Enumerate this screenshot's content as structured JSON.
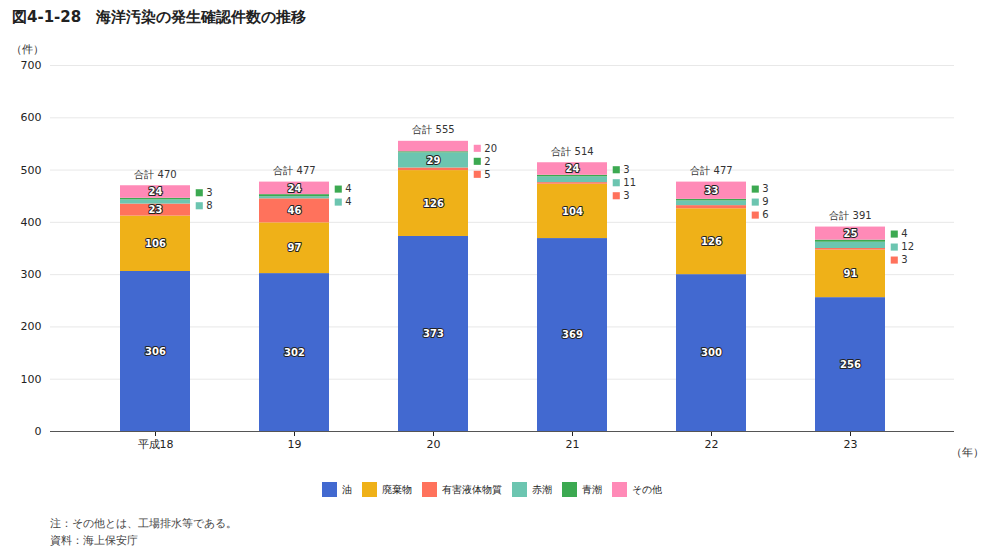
{
  "chart_data": {
    "type": "bar",
    "stacked": true,
    "title": "図4-1-28　海洋汚染の発生確認件数の推移",
    "xlabel": "（年）",
    "ylabel": "（件）",
    "categories": [
      "平成18",
      "19",
      "20",
      "21",
      "22",
      "23"
    ],
    "series": [
      {
        "name": "油",
        "values": [
          306,
          302,
          373,
          369,
          300,
          256
        ]
      },
      {
        "name": "廃棄物",
        "values": [
          106,
          97,
          126,
          104,
          126,
          91
        ]
      },
      {
        "name": "有害液体物質",
        "values": [
          23,
          46,
          5,
          3,
          6,
          3
        ]
      },
      {
        "name": "赤潮",
        "values": [
          8,
          4,
          29,
          11,
          9,
          12
        ]
      },
      {
        "name": "青潮",
        "values": [
          3,
          4,
          2,
          3,
          3,
          4
        ]
      },
      {
        "name": "その他",
        "values": [
          24,
          24,
          20,
          24,
          33,
          25
        ]
      }
    ],
    "totals": [
      470,
      477,
      555,
      514,
      477,
      391
    ],
    "total_labels": [
      "合計 470",
      "合計 477",
      "合計 555",
      "合計 514",
      "合計 477",
      "合計 391"
    ],
    "ylim": [
      0,
      700
    ],
    "yticks": [
      0,
      100,
      200,
      300,
      400,
      500,
      600,
      700
    ],
    "grid": true,
    "legend": "bottom",
    "data_labels": true,
    "note": "注：その他とは、工場排水等である。",
    "source": "資料：海上保安庁"
  }
}
